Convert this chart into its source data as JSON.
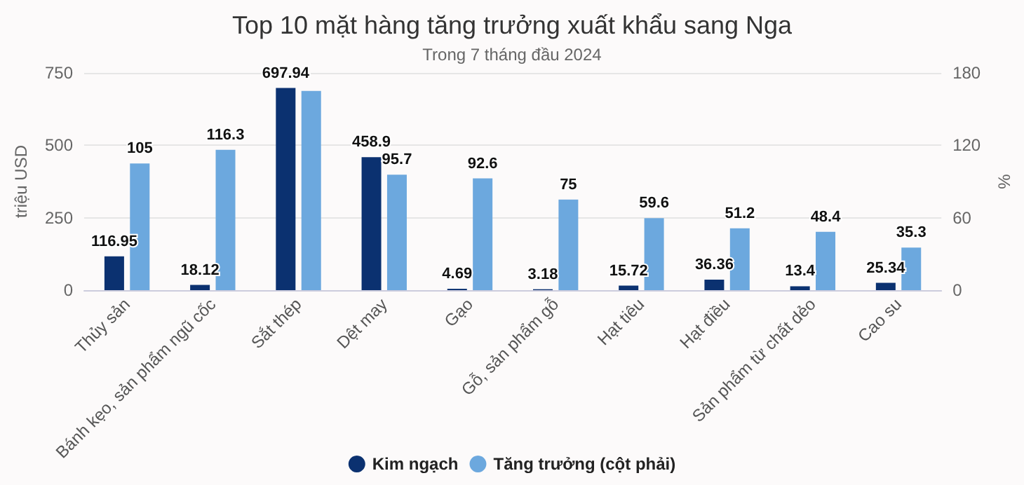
{
  "chart_data": {
    "type": "bar",
    "title": "Top 10 mặt hàng tăng trưởng xuất khẩu sang Nga",
    "subtitle": "Trong 7 tháng đầu 2024",
    "ylabel": "triệu USD",
    "y2label": "%",
    "categories": [
      "Thủy sản",
      "Bánh kẹo, sản phẩm ngũ cốc",
      "Sắt thép",
      "Dệt may",
      "Gạo",
      "Gỗ, sản phẩm gỗ",
      "Hạt tiêu",
      "Hạt điều",
      "Sản phẩm từ chất dẻo",
      "Cao su"
    ],
    "series": [
      {
        "name": "Kim ngạch",
        "color": "#0b3170",
        "values": [
          116.95,
          18.12,
          697.94,
          458.9,
          4.69,
          3.18,
          15.72,
          36.36,
          13.4,
          25.34
        ],
        "value_labels": [
          "116.95",
          "18.12",
          "697.94",
          "458.9",
          "4.69",
          "3.18",
          "15.72",
          "36.36",
          "13.4",
          "25.34"
        ]
      },
      {
        "name": "Tăng trưởng (cột phải)",
        "color": "#6ca8de",
        "axis": "y2",
        "values": [
          105,
          116.3,
          165,
          95.7,
          92.6,
          75,
          59.6,
          51.2,
          48.4,
          35.3
        ],
        "value_labels": [
          "105",
          "116.3",
          null,
          "95.7",
          "92.6",
          "75",
          "59.6",
          "51.2",
          "48.4",
          "35.3"
        ]
      }
    ],
    "ylim": [
      0,
      750
    ],
    "yticks": [
      0,
      250,
      500,
      750
    ],
    "y2lim": [
      0,
      180
    ],
    "y2ticks": [
      0,
      60,
      120,
      180
    ],
    "grid": "y",
    "legend": "bottom"
  }
}
